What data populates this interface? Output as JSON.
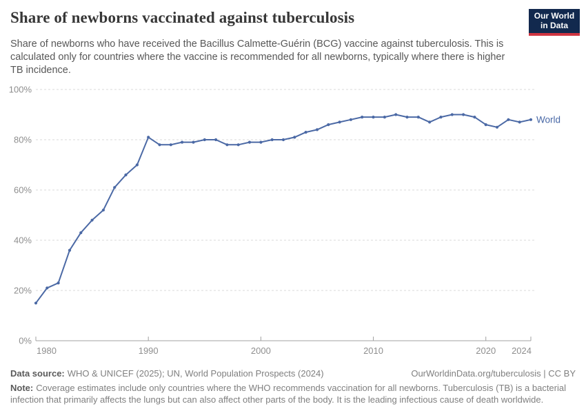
{
  "header": {
    "title": "Share of newborns vaccinated against tuberculosis",
    "subtitle": "Share of newborns who have received the Bacillus Calmette-Guérin (BCG) vaccine against tuberculosis. This is calculated only for countries where the vaccine is recommended for all newborns, typically where there is higher TB incidence."
  },
  "logo": {
    "line1": "Our World",
    "line2": "in Data"
  },
  "chart_data": {
    "type": "line",
    "title": "Share of newborns vaccinated against tuberculosis",
    "x": [
      1980,
      1981,
      1982,
      1983,
      1984,
      1985,
      1986,
      1987,
      1988,
      1989,
      1990,
      1991,
      1992,
      1993,
      1994,
      1995,
      1996,
      1997,
      1998,
      1999,
      2000,
      2001,
      2002,
      2003,
      2004,
      2005,
      2006,
      2007,
      2008,
      2009,
      2010,
      2011,
      2012,
      2013,
      2014,
      2015,
      2016,
      2017,
      2018,
      2019,
      2020,
      2021,
      2022,
      2023,
      2024
    ],
    "series": [
      {
        "name": "World",
        "values": [
          15,
          21,
          23,
          36,
          43,
          48,
          52,
          61,
          66,
          70,
          81,
          78,
          78,
          79,
          79,
          80,
          80,
          78,
          78,
          79,
          79,
          80,
          80,
          81,
          83,
          84,
          86,
          87,
          88,
          89,
          89,
          89,
          90,
          89,
          89,
          87,
          89,
          90,
          90,
          89,
          86,
          85,
          88,
          87,
          88
        ]
      }
    ],
    "xlim": [
      1980,
      2024
    ],
    "ylim": [
      0,
      100
    ],
    "yticks": [
      0,
      20,
      40,
      60,
      80,
      100
    ],
    "ytick_suffix": "%",
    "xticks": [
      1980,
      1990,
      2000,
      2010,
      2020,
      2024
    ],
    "grid": "horizontal-dashed",
    "legend": "line-end-label"
  },
  "colors": {
    "line": "#4B69A5",
    "series_label": "#4868a6",
    "grid": "#dadada",
    "axis": "#a0a0a0",
    "tick_text": "#8e8e8e"
  },
  "footer": {
    "datasource_label": "Data source:",
    "datasource": "WHO & UNICEF (2025); UN, World Population Prospects (2024)",
    "link": "OurWorldinData.org/tuberculosis | CC BY",
    "note_label": "Note:",
    "note": "Coverage estimates include only countries where the WHO recommends vaccination for all newborns. Tuberculosis (TB) is a bacterial infection that primarily affects the lungs but can also affect other parts of the body. It is the leading infectious cause of death worldwide."
  }
}
